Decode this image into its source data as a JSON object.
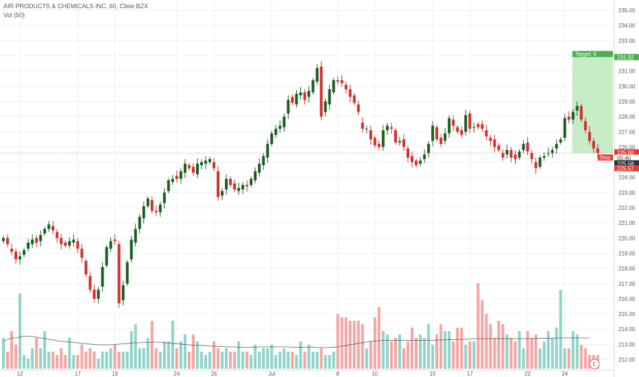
{
  "legend": {
    "symbol_line": "AIR PRODUCTS & CHEMICALS INC, 60, Cboe BZX",
    "volume_line": "Vol (50)"
  },
  "colors": {
    "up": "#26a69a",
    "up_body": "#1b5e20",
    "down": "#ef5350",
    "down_body": "#d32f2f",
    "grid": "#eef1f4",
    "target_fill": "#c8ebc8",
    "target_tag": "#4caf50",
    "stop_tag": "#e53935",
    "current_price_line": "#ef5350",
    "volume_ma": "#555555"
  },
  "chart_data": {
    "type": "candlestick",
    "title": "",
    "price_axis": {
      "ylim": [
        211.3,
        235.5
      ],
      "tick_labels": [
        "212.00",
        "213.00",
        "214.00",
        "215.00",
        "216.00",
        "217.00",
        "218.00",
        "219.00",
        "220.00",
        "221.00",
        "222.00",
        "223.00",
        "224.00",
        "225.00",
        "226.00",
        "227.00",
        "228.00",
        "229.00",
        "230.00",
        "231.00",
        "232.00",
        "233.00",
        "234.00",
        "235.00"
      ],
      "tick_values": [
        212,
        213,
        214,
        215,
        216,
        217,
        218,
        219,
        220,
        221,
        222,
        223,
        224,
        225,
        226,
        227,
        228,
        229,
        230,
        231,
        232,
        233,
        234,
        235
      ]
    },
    "date_axis": {
      "labels": [
        "12",
        "17",
        "19",
        "24",
        "26",
        "Jul",
        "8",
        "10",
        "15",
        "17",
        "22",
        "24"
      ],
      "label_bar_index": [
        4,
        18,
        27,
        42,
        51,
        65,
        81,
        90,
        104,
        113,
        127,
        136
      ]
    },
    "grid": true,
    "position_tool": {
      "entry": 225.6,
      "target": 231.92,
      "target_label": "Target: 6",
      "stop_label": "Stop",
      "start_bar": 138,
      "end_bar": 144
    },
    "price_tags": [
      {
        "label": "231.92",
        "kind": "target"
      },
      {
        "label": "225.60",
        "kind": "current"
      },
      {
        "label": "05:40",
        "kind": "countdown"
      },
      {
        "label": "225.58",
        "kind": "dark"
      },
      {
        "label": "225.57",
        "kind": "stop"
      }
    ],
    "candles_close": [
      220.0,
      219.6,
      219.1,
      218.6,
      218.8,
      219.2,
      219.7,
      219.9,
      219.7,
      220.2,
      220.6,
      220.9,
      220.5,
      220.0,
      219.6,
      219.5,
      219.8,
      219.9,
      219.3,
      218.7,
      217.6,
      216.6,
      216.0,
      216.6,
      218.1,
      219.4,
      219.8,
      219.8,
      215.7,
      216.9,
      218.4,
      219.9,
      220.6,
      221.4,
      222.1,
      222.6,
      221.8,
      221.7,
      222.2,
      223.0,
      223.8,
      223.9,
      223.9,
      224.4,
      224.9,
      224.6,
      224.3,
      224.9,
      225.0,
      225.1,
      225.2,
      224.6,
      222.7,
      223.1,
      223.9,
      223.5,
      223.2,
      223.3,
      223.5,
      223.4,
      223.9,
      224.4,
      224.9,
      225.4,
      226.2,
      226.9,
      227.2,
      227.4,
      228.0,
      229.1,
      228.9,
      229.5,
      229.6,
      229.1,
      229.7,
      230.4,
      231.2,
      228.0,
      229.0,
      229.8,
      230.4,
      230.3,
      230.2,
      229.8,
      229.3,
      228.9,
      228.3,
      227.2,
      227.2,
      226.5,
      226.1,
      226.0,
      227.1,
      227.4,
      227.2,
      226.3,
      226.4,
      226.0,
      225.3,
      225.0,
      224.8,
      225.1,
      225.5,
      226.2,
      227.4,
      226.5,
      226.2,
      226.9,
      227.9,
      227.4,
      227.0,
      226.8,
      228.1,
      227.2,
      227.3,
      227.3,
      227.2,
      226.7,
      226.4,
      226.0,
      225.8,
      225.3,
      225.8,
      225.3,
      225.2,
      225.7,
      226.2,
      225.7,
      225.2,
      224.6,
      225.3,
      225.4,
      225.6,
      225.8,
      226.2,
      226.5,
      227.9,
      227.8,
      228.3,
      228.7,
      227.8,
      227.1,
      226.4,
      225.9,
      225.6
    ],
    "candles_open": [
      219.8,
      220.0,
      219.3,
      219.1,
      218.6,
      218.9,
      219.3,
      219.6,
      220.0,
      219.8,
      220.3,
      220.6,
      220.8,
      220.4,
      220.0,
      219.7,
      219.5,
      219.7,
      219.8,
      219.3,
      218.5,
      217.5,
      216.6,
      216.0,
      216.8,
      218.2,
      219.3,
      219.9,
      219.6,
      215.9,
      217.0,
      218.6,
      219.7,
      220.6,
      221.3,
      222.1,
      222.5,
      221.8,
      221.7,
      222.3,
      223.1,
      223.7,
      224.1,
      223.9,
      224.3,
      224.8,
      224.7,
      224.2,
      224.8,
      224.9,
      225.0,
      225.0,
      224.4,
      222.8,
      223.2,
      223.9,
      223.6,
      223.1,
      223.2,
      223.5,
      223.5,
      223.8,
      224.3,
      224.8,
      225.3,
      226.2,
      226.8,
      227.2,
      227.3,
      228.2,
      229.3,
      228.8,
      229.4,
      229.6,
      229.3,
      229.6,
      230.3,
      231.3,
      228.3,
      228.8,
      229.6,
      230.4,
      230.4,
      230.1,
      229.8,
      229.4,
      228.8,
      227.6,
      227.2,
      227.1,
      226.6,
      226.2,
      226.0,
      227.1,
      227.3,
      227.1,
      226.3,
      226.5,
      225.9,
      225.4,
      225.1,
      224.9,
      225.2,
      225.6,
      226.4,
      227.3,
      226.6,
      226.4,
      226.9,
      227.8,
      227.3,
      227.1,
      227.0,
      228.2,
      227.3,
      227.5,
      227.5,
      227.1,
      226.6,
      226.5,
      226.1,
      225.6,
      225.5,
      225.8,
      225.5,
      225.3,
      225.8,
      226.3,
      225.6,
      225.0,
      224.7,
      225.3,
      225.6,
      225.6,
      225.9,
      226.3,
      226.6,
      228.0,
      227.8,
      228.4,
      228.7,
      227.7,
      227.0,
      226.4,
      225.9
    ],
    "volume_axis": {
      "ylim": [
        0,
        28
      ]
    },
    "volume": [
      9,
      5,
      11,
      7,
      22,
      4,
      3,
      6,
      9,
      6,
      11,
      5,
      5,
      4,
      6,
      4,
      9,
      4,
      4,
      7,
      5,
      6,
      5,
      3,
      5,
      5,
      6,
      7,
      5,
      5,
      5,
      11,
      13,
      6,
      6,
      9,
      14,
      6,
      5,
      8,
      8,
      14,
      6,
      8,
      10,
      5,
      10,
      8,
      5,
      4,
      5,
      8,
      6,
      5,
      6,
      5,
      5,
      8,
      5,
      5,
      4,
      7,
      5,
      6,
      6,
      7,
      4,
      5,
      6,
      5,
      5,
      4,
      8,
      5,
      7,
      5,
      5,
      6,
      4,
      4,
      5,
      16,
      15,
      15,
      14,
      14,
      14,
      13,
      6,
      8,
      15,
      18,
      11,
      10,
      8,
      9,
      10,
      6,
      8,
      12,
      9,
      10,
      9,
      13,
      7,
      10,
      13,
      11,
      11,
      8,
      12,
      12,
      7,
      8,
      8,
      25,
      20,
      16,
      13,
      9,
      14,
      13,
      10,
      9,
      8,
      11,
      6,
      11,
      9,
      10,
      6,
      8,
      11,
      9,
      12,
      23,
      6,
      6,
      11,
      10,
      7,
      6,
      4,
      4,
      4
    ],
    "volume_ma": [
      8,
      8.5,
      9,
      9,
      9.3,
      9.5,
      9.5,
      9.4,
      9.2,
      9.0,
      8.8,
      8.6,
      8.4,
      8.2,
      8.0,
      7.9,
      7.8,
      7.7,
      7.6,
      7.4,
      7.3,
      7.2,
      7.1,
      7.0,
      7.0,
      7.0,
      7.0,
      7.1,
      7.2,
      7.3,
      7.4,
      7.5,
      7.6,
      7.6,
      7.7,
      7.7,
      7.8,
      7.8,
      7.7,
      7.6,
      7.5,
      7.4,
      7.3,
      7.2,
      7.1,
      7.0,
      6.9,
      6.8,
      6.8,
      6.7,
      6.6,
      6.6,
      6.5,
      6.5,
      6.4,
      6.4,
      6.4,
      6.3,
      6.3,
      6.3,
      6.3,
      6.3,
      6.4,
      6.4,
      6.4,
      6.4,
      6.4,
      6.4,
      6.4,
      6.4,
      6.3,
      6.3,
      6.3,
      6.3,
      6.3,
      6.3,
      6.2,
      6.2,
      6.2,
      6.2,
      6.3,
      6.4,
      6.6,
      6.8,
      7.0,
      7.2,
      7.4,
      7.6,
      7.8,
      8.0,
      8.1,
      8.2,
      8.3,
      8.3,
      8.3,
      8.3,
      8.3,
      8.3,
      8.3,
      8.3,
      8.3,
      8.3,
      8.3,
      8.3,
      8.3,
      8.4,
      8.4,
      8.5,
      8.5,
      8.5,
      8.5,
      8.6,
      8.6,
      8.7,
      8.8,
      8.8,
      8.8,
      8.8,
      8.8,
      8.8,
      8.8,
      8.8,
      8.8,
      8.8,
      8.8,
      8.8,
      8.8,
      8.8,
      8.8,
      8.8,
      8.9,
      8.9,
      8.9,
      8.9,
      9.0,
      9.0,
      9.0,
      9.0,
      9.0,
      9.0,
      9.0,
      9.0,
      9.0
    ]
  }
}
